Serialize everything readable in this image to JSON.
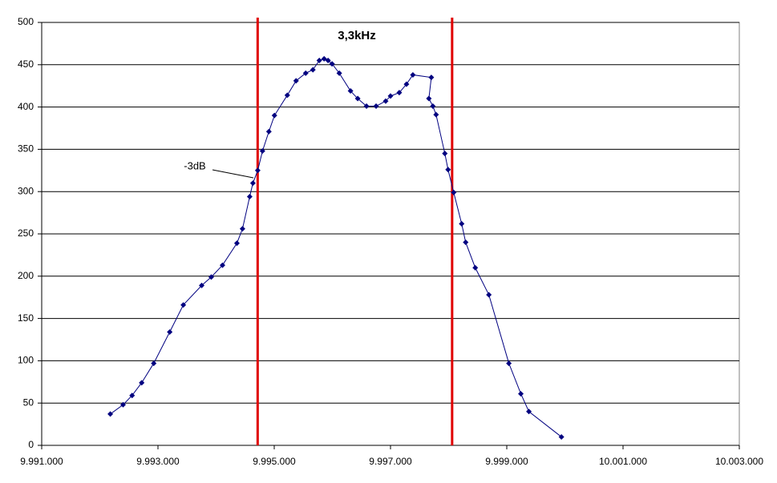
{
  "chart_data": {
    "type": "line",
    "annotations": {
      "title": "3,3kHz",
      "db": "-3dB"
    },
    "x": [
      9992180,
      9992400,
      9992555,
      9992720,
      9992927,
      9993202,
      9993436,
      9993752,
      9993917,
      9994110,
      9994358,
      9994454,
      9994578,
      9994633,
      9994716,
      9994798,
      9994908,
      9995004,
      9995225,
      9995376,
      9995541,
      9995665,
      9995775,
      9995858,
      9995926,
      9995995,
      9996119,
      9996312,
      9996436,
      9996587,
      9996752,
      9996917,
      9997000,
      9997151,
      9997275,
      9997385,
      9997702,
      9997660,
      9997729,
      9997784,
      9997935,
      9997990,
      9998087,
      9998224,
      9998293,
      9998458,
      9998692,
      9999036,
      9999242,
      9999380,
      9999940
    ],
    "values": [
      37,
      48,
      59,
      74,
      97,
      134,
      166,
      189,
      199,
      213,
      239,
      256,
      294,
      310,
      325,
      348,
      371,
      390,
      414,
      431,
      440,
      444,
      455,
      457,
      455,
      451,
      440,
      419,
      410,
      401,
      401,
      407,
      413,
      417,
      427,
      438,
      435,
      410,
      401,
      391,
      345,
      326,
      299,
      262,
      240,
      210,
      178,
      97,
      61,
      40,
      10
    ],
    "color": "#000080",
    "vlines": [
      9994715,
      9998060
    ],
    "vline_color": "#e00000",
    "xlim": [
      9991000,
      10003000
    ],
    "xticks": [
      {
        "value": 9991000,
        "label": "9.991.000"
      },
      {
        "value": 9993000,
        "label": "9.993.000"
      },
      {
        "value": 9995000,
        "label": "9.995.000"
      },
      {
        "value": 9997000,
        "label": "9.997.000"
      },
      {
        "value": 9999000,
        "label": "9.999.000"
      },
      {
        "value": 10001000,
        "label": "10.001.000"
      },
      {
        "value": 10003000,
        "label": "10.003.000"
      }
    ],
    "ylim": [
      0,
      500
    ],
    "yticks": [
      0,
      50,
      100,
      150,
      200,
      250,
      300,
      350,
      400,
      450,
      500
    ],
    "grid": true
  }
}
